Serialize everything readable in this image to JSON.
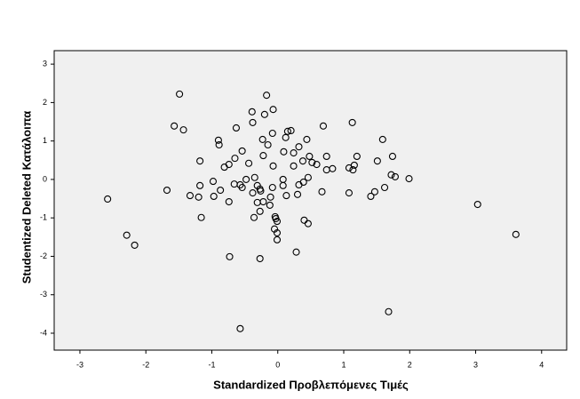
{
  "chart_data": {
    "type": "scatter",
    "x_label": "Standardized Προβλεπόμενες Τιμές",
    "y_label": "Studentized Deleted Κατάλοιπα",
    "xlim": [
      -3.39,
      4.38
    ],
    "ylim": [
      -4.44,
      3.35
    ],
    "xticks": [
      -3,
      -2,
      -1,
      0,
      1,
      2,
      3,
      4
    ],
    "yticks": [
      -4,
      -3,
      -2,
      -1,
      0,
      1,
      2,
      3
    ],
    "grid": false,
    "color": "#000000",
    "x": [
      -1.49,
      -0.17,
      -1.57,
      -1.43,
      -0.39,
      -0.07,
      -0.2,
      -0.38,
      -0.63,
      -0.08,
      0.15,
      0.2,
      0.69,
      1.13,
      -0.9,
      -0.89,
      -0.23,
      0.12,
      0.44,
      1.59,
      -0.15,
      -0.54,
      0.32,
      -1.18,
      -0.65,
      -0.74,
      -0.81,
      -0.44,
      -0.22,
      -0.07,
      0.09,
      0.24,
      0.24,
      0.38,
      0.48,
      0.52,
      0.59,
      0.74,
      0.83,
      0.74,
      1.2,
      1.16,
      1.08,
      1.14,
      1.51,
      1.74,
      1.72,
      1.78,
      1.99,
      -1.68,
      -1.18,
      -0.98,
      -0.87,
      -0.66,
      -0.57,
      -0.54,
      -0.48,
      -0.35,
      -0.31,
      -0.27,
      -0.38,
      -0.26,
      -0.08,
      0.08,
      0.08,
      0.32,
      0.46,
      0.39,
      0.13,
      0.3,
      0.67,
      1.08,
      1.41,
      1.47,
      1.62,
      -1.33,
      -1.2,
      -0.97,
      -0.74,
      -0.31,
      -0.22,
      -0.12,
      -0.11,
      -0.27,
      -0.04,
      -0.03,
      -0.01,
      -0.36,
      -1.16,
      0.4,
      0.46,
      -2.58,
      -2.29,
      -2.17,
      -0.05,
      -0.01,
      -0.01,
      -0.73,
      -0.27,
      0.28,
      3.03,
      3.61,
      1.68,
      -0.57
    ],
    "values": [
      2.22,
      2.19,
      1.39,
      1.29,
      1.76,
      1.82,
      1.69,
      1.48,
      1.34,
      1.2,
      1.25,
      1.27,
      1.39,
      1.48,
      1.02,
      0.9,
      1.04,
      1.09,
      1.04,
      1.04,
      0.9,
      0.74,
      0.85,
      0.48,
      0.55,
      0.39,
      0.32,
      0.42,
      0.62,
      0.35,
      0.72,
      0.69,
      0.35,
      0.48,
      0.6,
      0.44,
      0.39,
      0.6,
      0.28,
      0.25,
      0.6,
      0.37,
      0.3,
      0.25,
      0.48,
      0.6,
      0.12,
      0.07,
      0.02,
      -0.28,
      -0.16,
      -0.05,
      -0.28,
      -0.12,
      -0.14,
      -0.21,
      0.0,
      0.05,
      -0.16,
      -0.25,
      -0.35,
      -0.3,
      -0.21,
      0.0,
      -0.16,
      -0.14,
      0.05,
      -0.07,
      -0.42,
      -0.39,
      -0.32,
      -0.35,
      -0.44,
      -0.32,
      -0.21,
      -0.42,
      -0.46,
      -0.44,
      -0.58,
      -0.6,
      -0.58,
      -0.67,
      -0.46,
      -0.83,
      -0.97,
      -1.02,
      -1.09,
      -0.99,
      -0.99,
      -1.06,
      -1.15,
      -0.51,
      -1.45,
      -1.71,
      -1.29,
      -1.39,
      -1.57,
      -2.01,
      -2.06,
      -1.89,
      -0.65,
      -1.43,
      -3.44,
      -3.88
    ]
  }
}
